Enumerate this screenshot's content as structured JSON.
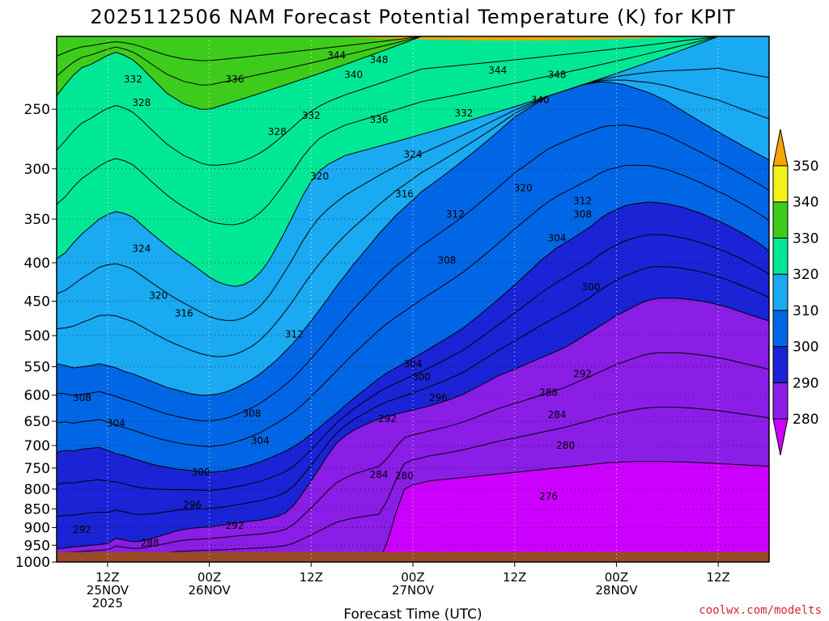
{
  "chart_data": {
    "type": "heatmap",
    "subtype": "time-pressure contour cross section",
    "title": "2025112506 NAM Forecast Potential Temperature (K) for KPIT",
    "xlabel": "Forecast Time (UTC)",
    "ylabel": "",
    "y_ticks": [
      "250",
      "300",
      "350",
      "400",
      "450",
      "500",
      "550",
      "600",
      "650",
      "700",
      "750",
      "800",
      "850",
      "900",
      "950",
      "1000"
    ],
    "y_range_hpa": [
      200,
      1000
    ],
    "x_ticks": [
      {
        "line1": "12Z",
        "line2": "25NOV",
        "line3": "2025",
        "hour": 6
      },
      {
        "line1": "00Z",
        "line2": "26NOV",
        "line3": "",
        "hour": 18
      },
      {
        "line1": "12Z",
        "line2": "",
        "line3": "",
        "hour": 30
      },
      {
        "line1": "00Z",
        "line2": "27NOV",
        "line3": "",
        "hour": 42
      },
      {
        "line1": "12Z",
        "line2": "",
        "line3": "",
        "hour": 54
      },
      {
        "line1": "00Z",
        "line2": "28NOV",
        "line3": "",
        "hour": 66
      },
      {
        "line1": "12Z",
        "line2": "",
        "line3": "",
        "hour": 78
      }
    ],
    "x_range_hours": [
      0,
      84
    ],
    "colorbar": {
      "levels": [
        280,
        290,
        300,
        310,
        320,
        330,
        340,
        350
      ],
      "labels": [
        "280",
        "290",
        "300",
        "310",
        "320",
        "330",
        "340",
        "350"
      ],
      "colors": [
        "#cc00ff",
        "#8a1ee6",
        "#1a24d6",
        "#0066e6",
        "#1aaaf2",
        "#00e896",
        "#3ecc1c",
        "#f2f21a",
        "#f5a400"
      ]
    },
    "series": [
      {
        "name": "276K",
        "level": 276,
        "values": [
          null,
          null,
          null,
          null,
          null,
          null,
          null,
          null,
          null,
          null,
          null,
          null,
          null,
          null,
          null,
          null,
          null,
          null,
          null,
          null,
          null,
          null,
          null,
          null,
          null,
          null,
          null,
          null,
          null,
          null,
          null,
          null,
          null,
          null,
          null,
          null,
          null,
          null,
          null,
          null,
          null,
          null,
          null,
          null,
          null,
          null,
          null,
          null,
          null,
          null,
          null,
          null,
          null,
          null,
          null,
          null,
          null,
          null,
          null,
          null,
          null,
          null,
          null,
          null,
          null,
          null,
          null,
          null,
          null,
          null,
          null,
          null,
          null,
          null,
          null,
          null,
          null,
          null,
          null,
          null,
          null,
          null,
          null,
          null,
          null
        ]
      },
      {
        "name": "280K",
        "level": 280,
        "pressures": [
          1000,
          1000,
          1000,
          1000,
          1000,
          1000,
          1000,
          1000,
          1000,
          1000,
          1000,
          1000,
          1000,
          1000,
          1000,
          1000,
          1000,
          1000,
          1000,
          1000,
          1000,
          1000,
          1000,
          1000,
          1000,
          1000,
          1000,
          1000,
          1000,
          1000,
          1000,
          1000,
          1000,
          1000,
          1000,
          1000,
          1000,
          1000,
          1000,
          940,
          860,
          800,
          790,
          785,
          780,
          778,
          776,
          774,
          772,
          770,
          768,
          766,
          764,
          762,
          760,
          758,
          756,
          754,
          752,
          750,
          748,
          746,
          744,
          742,
          740,
          738,
          737,
          736,
          735,
          735,
          735,
          735,
          735,
          736,
          736,
          737,
          738,
          739,
          740,
          741,
          742,
          743,
          744,
          745,
          746
        ]
      },
      {
        "name": "290K",
        "level": 290,
        "pressures": [
          960,
          958,
          955,
          953,
          950,
          948,
          945,
          930,
          935,
          940,
          938,
          932,
          925,
          918,
          910,
          905,
          902,
          900,
          898,
          895,
          892,
          888,
          885,
          882,
          880,
          875,
          870,
          860,
          840,
          810,
          780,
          750,
          720,
          695,
          680,
          668,
          660,
          652,
          645,
          640,
          636,
          632,
          628,
          624,
          620,
          615,
          610,
          604,
          598,
          590,
          582,
          574,
          566,
          560,
          554,
          548,
          542,
          536,
          530,
          524,
          518,
          510,
          502,
          494,
          486,
          478,
          470,
          464,
          458,
          452,
          448,
          446,
          446,
          446,
          447,
          448,
          450,
          452,
          455,
          458,
          462,
          466,
          470,
          474,
          478
        ]
      },
      {
        "name": "300K",
        "level": 300,
        "pressures": [
          715,
          710,
          712,
          708,
          706,
          704,
          710,
          718,
          722,
          728,
          734,
          740,
          745,
          748,
          752,
          754,
          756,
          758,
          760,
          758,
          756,
          752,
          748,
          742,
          736,
          728,
          720,
          712,
          702,
          690,
          676,
          662,
          648,
          634,
          620,
          606,
          594,
          582,
          570,
          560,
          552,
          544,
          536,
          528,
          520,
          512,
          504,
          496,
          488,
          478,
          468,
          458,
          448,
          438,
          428,
          418,
          408,
          398,
          390,
          382,
          376,
          370,
          364,
          358,
          350,
          344,
          340,
          336,
          334,
          333,
          332,
          333,
          334,
          336,
          338,
          341,
          344,
          348,
          352,
          356,
          361,
          366,
          372,
          378,
          386
        ]
      },
      {
        "name": "310K",
        "level": 310,
        "pressures": [
          545,
          548,
          552,
          550,
          548,
          545,
          548,
          552,
          558,
          562,
          568,
          574,
          580,
          586,
          590,
          594,
          598,
          600,
          600,
          598,
          594,
          588,
          580,
          572,
          562,
          550,
          538,
          524,
          510,
          494,
          478,
          462,
          446,
          430,
          416,
          402,
          390,
          378,
          366,
          356,
          346,
          338,
          330,
          322,
          316,
          310,
          304,
          298,
          292,
          286,
          280,
          274,
          268,
          262,
          256,
          252,
          248,
          244,
          240,
          238,
          236,
          234,
          232,
          231,
          230,
          230,
          231,
          232,
          234,
          236,
          238,
          241,
          244,
          248,
          252,
          256,
          260,
          264,
          268,
          272,
          276,
          280,
          284,
          288,
          292
        ]
      },
      {
        "name": "320K",
        "level": 320,
        "pressures": [
          395,
          388,
          376,
          366,
          358,
          350,
          345,
          342,
          344,
          348,
          356,
          364,
          372,
          380,
          388,
          395,
          402,
          410,
          418,
          424,
          428,
          430,
          428,
          422,
          412,
          398,
          380,
          362,
          344,
          326,
          312,
          302,
          296,
          292,
          288,
          286,
          284,
          282,
          280,
          278,
          276,
          274,
          272,
          270,
          268,
          266,
          264,
          262,
          260,
          258,
          256,
          254,
          252,
          250,
          248,
          246,
          244,
          242,
          240,
          238,
          236,
          234,
          232,
          230,
          228,
          226,
          224,
          222,
          220,
          218,
          216,
          214,
          212,
          210,
          208,
          206,
          204,
          202,
          200,
          200,
          200,
          200,
          200,
          200,
          200
        ]
      },
      {
        "name": "330K",
        "level": 330,
        "pressures": [
          240,
          232,
          225,
          220,
          218,
          215,
          212,
          210,
          212,
          215,
          220,
          226,
          232,
          238,
          242,
          246,
          248,
          250,
          250,
          248,
          246,
          244,
          242,
          240,
          238,
          236,
          234,
          232,
          230,
          228,
          226,
          224,
          222,
          220,
          218,
          216,
          214,
          212,
          210,
          208,
          206,
          204,
          202,
          200,
          200,
          200,
          200,
          200,
          200,
          200,
          200,
          200,
          200,
          200,
          200,
          200,
          200,
          200,
          200,
          200,
          200,
          200,
          200,
          200,
          200,
          200,
          200,
          200,
          200,
          200,
          200,
          200,
          200,
          200,
          200,
          200,
          200,
          200,
          200,
          200,
          200,
          200,
          200,
          200,
          200
        ]
      },
      {
        "name": "340K",
        "level": 340,
        "pressures": [
          200,
          200,
          200,
          200,
          200,
          200,
          200,
          200,
          200,
          200,
          200,
          200,
          200,
          200,
          200,
          200,
          200,
          200,
          200,
          200,
          200,
          200,
          200,
          200,
          200,
          200,
          200,
          200,
          200,
          200,
          200,
          200,
          200,
          200,
          200,
          200,
          200,
          200,
          200,
          200,
          200,
          200,
          200,
          200,
          200,
          200,
          200,
          200,
          200,
          200,
          200,
          200,
          200,
          200,
          200,
          200,
          200,
          200,
          200,
          200,
          200,
          200,
          200,
          200,
          200,
          200,
          200,
          200,
          200,
          200,
          200,
          200,
          200,
          200,
          200,
          200,
          200,
          200,
          200,
          200,
          200,
          200,
          200,
          200,
          200
        ]
      }
    ],
    "contour_labels": [
      {
        "text": "344",
        "hour": 33,
        "p": 212
      },
      {
        "text": "348",
        "hour": 38,
        "p": 215
      },
      {
        "text": "340",
        "hour": 35,
        "p": 225
      },
      {
        "text": "344",
        "hour": 52,
        "p": 222
      },
      {
        "text": "348",
        "hour": 59,
        "p": 225
      },
      {
        "text": "332",
        "hour": 9,
        "p": 228
      },
      {
        "text": "336",
        "hour": 21,
        "p": 228
      },
      {
        "text": "340",
        "hour": 57,
        "p": 243
      },
      {
        "text": "328",
        "hour": 10,
        "p": 245
      },
      {
        "text": "332",
        "hour": 30,
        "p": 255
      },
      {
        "text": "336",
        "hour": 38,
        "p": 258
      },
      {
        "text": "332",
        "hour": 48,
        "p": 253
      },
      {
        "text": "328",
        "hour": 26,
        "p": 268
      },
      {
        "text": "324",
        "hour": 42,
        "p": 287
      },
      {
        "text": "320",
        "hour": 31,
        "p": 307
      },
      {
        "text": "316",
        "hour": 41,
        "p": 324
      },
      {
        "text": "320",
        "hour": 55,
        "p": 318
      },
      {
        "text": "312",
        "hour": 62,
        "p": 331
      },
      {
        "text": "312",
        "hour": 47,
        "p": 345
      },
      {
        "text": "308",
        "hour": 62,
        "p": 345
      },
      {
        "text": "304",
        "hour": 59,
        "p": 371
      },
      {
        "text": "324",
        "hour": 10,
        "p": 383
      },
      {
        "text": "308",
        "hour": 46,
        "p": 397
      },
      {
        "text": "300",
        "hour": 63,
        "p": 431
      },
      {
        "text": "320",
        "hour": 12,
        "p": 442
      },
      {
        "text": "316",
        "hour": 15,
        "p": 467
      },
      {
        "text": "312",
        "hour": 28,
        "p": 498
      },
      {
        "text": "304",
        "hour": 42,
        "p": 545
      },
      {
        "text": "292",
        "hour": 62,
        "p": 562
      },
      {
        "text": "300",
        "hour": 43,
        "p": 568
      },
      {
        "text": "288",
        "hour": 58,
        "p": 595
      },
      {
        "text": "308",
        "hour": 3,
        "p": 605
      },
      {
        "text": "296",
        "hour": 45,
        "p": 605
      },
      {
        "text": "308",
        "hour": 23,
        "p": 635
      },
      {
        "text": "284",
        "hour": 59,
        "p": 637
      },
      {
        "text": "292",
        "hour": 39,
        "p": 645
      },
      {
        "text": "304",
        "hour": 7,
        "p": 654
      },
      {
        "text": "304",
        "hour": 24,
        "p": 690
      },
      {
        "text": "280",
        "hour": 60,
        "p": 700
      },
      {
        "text": "300",
        "hour": 17,
        "p": 760
      },
      {
        "text": "284",
        "hour": 38,
        "p": 765
      },
      {
        "text": "280",
        "hour": 41,
        "p": 768
      },
      {
        "text": "276",
        "hour": 58,
        "p": 818
      },
      {
        "text": "296",
        "hour": 16,
        "p": 840
      },
      {
        "text": "292",
        "hour": 21,
        "p": 895
      },
      {
        "text": "292",
        "hour": 3,
        "p": 906
      },
      {
        "text": "288",
        "hour": 11,
        "p": 944
      }
    ],
    "ground": {
      "label": "terrain",
      "pressure_hpa": 970
    }
  },
  "footer": {
    "xlabel": "Forecast Time (UTC)",
    "credit": "coolwx.com/modelts"
  }
}
